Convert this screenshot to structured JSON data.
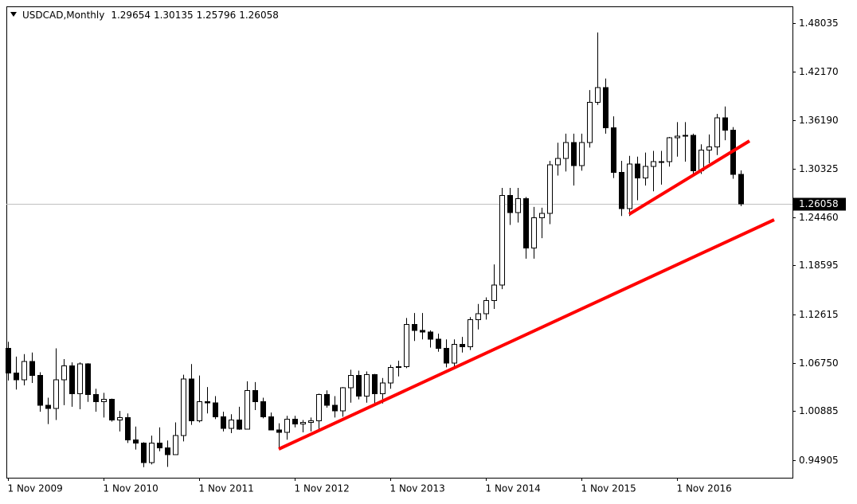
{
  "chart_data": {
    "type": "candlestick",
    "symbol": "USDCAD,Monthly",
    "categories": [
      "1 Nov 2009",
      null,
      null,
      null,
      null,
      null,
      null,
      null,
      null,
      null,
      null,
      null,
      "1 Nov 2010",
      null,
      null,
      null,
      null,
      null,
      null,
      null,
      null,
      null,
      null,
      null,
      "1 Nov 2011",
      null,
      null,
      null,
      null,
      null,
      null,
      null,
      null,
      null,
      null,
      null,
      "1 Nov 2012",
      null,
      null,
      null,
      null,
      null,
      null,
      null,
      null,
      null,
      null,
      null,
      "1 Nov 2013",
      null,
      null,
      null,
      null,
      null,
      null,
      null,
      null,
      null,
      null,
      null,
      "1 Nov 2014",
      null,
      null,
      null,
      null,
      null,
      null,
      null,
      null,
      null,
      null,
      null,
      "1 Nov 2015",
      null,
      null,
      null,
      null,
      null,
      null,
      null,
      null,
      null,
      null,
      null,
      "1 Nov 2016",
      null,
      null,
      null,
      null,
      null,
      null,
      null,
      null
    ],
    "open": [
      1.085,
      1.055,
      1.047,
      1.069,
      1.052,
      1.016,
      1.012,
      1.047,
      1.064,
      1.03,
      1.066,
      1.029,
      1.02,
      1.023,
      0.998,
      1.001,
      0.974,
      0.97,
      0.946,
      0.97,
      0.964,
      0.956,
      0.979,
      1.048,
      0.997,
      1.02,
      1.019,
      1.002,
      0.988,
      0.998,
      0.987,
      1.034,
      1.02,
      1.002,
      0.986,
      0.983,
      0.999,
      0.993,
      0.995,
      0.997,
      1.029,
      1.016,
      1.009,
      1.037,
      1.052,
      1.027,
      1.053,
      1.03,
      1.043,
      1.062,
      1.063,
      1.114,
      1.107,
      1.105,
      1.096,
      1.085,
      1.067,
      1.09,
      1.087,
      1.12,
      1.127,
      1.143,
      1.162,
      1.271,
      1.25,
      1.267,
      1.207,
      1.244,
      1.249,
      1.308,
      1.316,
      1.335,
      1.307,
      1.335,
      1.384,
      1.402,
      1.353,
      1.299,
      1.255,
      1.309,
      1.292,
      1.306,
      1.312,
      1.312,
      1.341,
      1.343,
      1.344,
      1.301,
      1.326,
      1.33,
      1.365,
      1.35,
      1.29654
    ],
    "high": [
      1.093,
      1.075,
      1.078,
      1.08,
      1.056,
      1.025,
      1.085,
      1.072,
      1.068,
      1.068,
      1.067,
      1.036,
      1.031,
      1.024,
      1.009,
      1.006,
      0.99,
      0.971,
      0.979,
      0.989,
      0.973,
      0.995,
      1.053,
      1.066,
      1.052,
      1.038,
      1.027,
      1.008,
      1.005,
      1.014,
      1.045,
      1.044,
      1.025,
      1.007,
      0.994,
      1.003,
      1.003,
      0.998,
      1.001,
      1.03,
      1.034,
      1.027,
      1.038,
      1.059,
      1.058,
      1.057,
      1.054,
      1.049,
      1.065,
      1.07,
      1.122,
      1.128,
      1.128,
      1.107,
      1.103,
      1.096,
      1.096,
      1.099,
      1.123,
      1.139,
      1.147,
      1.187,
      1.28,
      1.28,
      1.28,
      1.269,
      1.257,
      1.256,
      1.313,
      1.335,
      1.346,
      1.346,
      1.346,
      1.399,
      1.469,
      1.413,
      1.367,
      1.313,
      1.319,
      1.318,
      1.323,
      1.325,
      1.325,
      1.342,
      1.36,
      1.36,
      1.346,
      1.333,
      1.345,
      1.37,
      1.379,
      1.354,
      1.30135
    ],
    "low": [
      1.046,
      1.035,
      1.04,
      1.043,
      1.008,
      0.993,
      0.998,
      1.016,
      1.014,
      1.011,
      1.02,
      1.008,
      1.001,
      0.996,
      0.984,
      0.97,
      0.962,
      0.9406,
      0.944,
      0.96,
      0.941,
      0.956,
      0.972,
      0.992,
      0.995,
      1.006,
      0.999,
      0.984,
      0.982,
      0.986,
      0.987,
      1.01,
      1.0,
      0.986,
      0.963,
      0.974,
      0.989,
      0.983,
      0.984,
      0.987,
      1.013,
      1.001,
      1.002,
      1.019,
      1.023,
      1.019,
      1.018,
      1.018,
      1.036,
      1.051,
      1.061,
      1.094,
      1.096,
      1.086,
      1.081,
      1.062,
      1.062,
      1.08,
      1.083,
      1.108,
      1.12,
      1.133,
      1.157,
      1.235,
      1.238,
      1.194,
      1.194,
      1.219,
      1.236,
      1.295,
      1.3,
      1.283,
      1.301,
      1.329,
      1.381,
      1.346,
      1.292,
      1.246,
      1.246,
      1.265,
      1.283,
      1.276,
      1.284,
      1.306,
      1.318,
      1.312,
      1.297,
      1.297,
      1.31,
      1.32,
      1.338,
      1.2912,
      1.25796
    ],
    "close": [
      1.055,
      1.047,
      1.069,
      1.052,
      1.016,
      1.012,
      1.047,
      1.064,
      1.03,
      1.066,
      1.029,
      1.02,
      1.023,
      0.998,
      1.001,
      0.974,
      0.97,
      0.946,
      0.97,
      0.964,
      0.956,
      0.979,
      1.048,
      0.997,
      1.02,
      1.019,
      1.002,
      0.988,
      0.998,
      0.987,
      1.034,
      1.02,
      1.002,
      0.986,
      0.983,
      0.999,
      0.993,
      0.995,
      0.997,
      1.029,
      1.016,
      1.009,
      1.037,
      1.052,
      1.027,
      1.053,
      1.03,
      1.043,
      1.062,
      1.063,
      1.114,
      1.107,
      1.105,
      1.096,
      1.085,
      1.067,
      1.09,
      1.087,
      1.12,
      1.127,
      1.143,
      1.162,
      1.271,
      1.25,
      1.267,
      1.207,
      1.244,
      1.249,
      1.308,
      1.316,
      1.335,
      1.307,
      1.335,
      1.384,
      1.402,
      1.353,
      1.299,
      1.255,
      1.309,
      1.292,
      1.306,
      1.312,
      1.312,
      1.341,
      1.343,
      1.344,
      1.301,
      1.326,
      1.33,
      1.365,
      1.35,
      1.29654,
      1.26058
    ],
    "up_color": "#ffffff",
    "down_color": "#000000",
    "ylim": [
      0.9278,
      1.5007
    ],
    "yticks": [
      0.94905,
      1.00885,
      {
        "value": 1.0675,
        "label": "1.06750"
      },
      1.12615,
      1.18595,
      {
        "value": 1.2446,
        "label": "1.24460"
      },
      1.30325,
      {
        "value": 1.3619,
        "label": "1.36190"
      },
      {
        "value": 1.4217,
        "label": "1.42170"
      },
      1.48035
    ]
  }
}
